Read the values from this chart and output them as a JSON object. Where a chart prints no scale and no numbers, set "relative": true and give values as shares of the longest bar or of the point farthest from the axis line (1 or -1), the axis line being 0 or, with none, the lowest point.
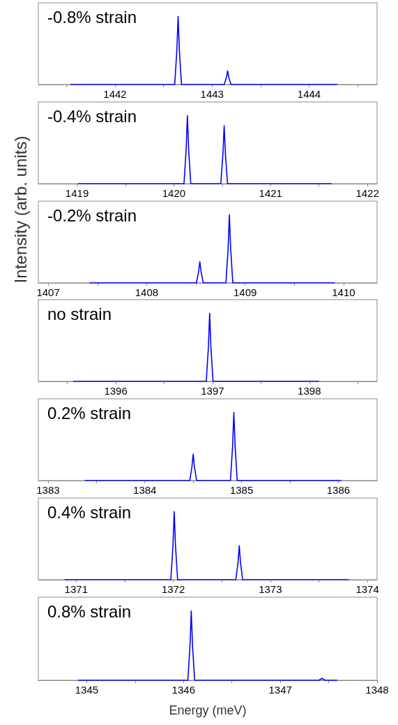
{
  "chart_data": [
    {
      "type": "line",
      "relative": true,
      "marker": "none",
      "annotations": [
        "-0.8% strain"
      ],
      "xlim": [
        1441.21,
        1444.7
      ],
      "xticks": [
        {
          "value": 1441.5,
          "label": null
        },
        1442,
        {
          "value": 1442.5,
          "label": null
        },
        1443,
        {
          "value": 1443.5,
          "label": null
        },
        1444,
        {
          "value": 1444.5,
          "label": null
        }
      ],
      "x": [
        1441.54,
        1442.615,
        1442.637,
        1442.65,
        1442.663,
        1442.685,
        1443.125,
        1443.147,
        1443.16,
        1443.173,
        1443.195,
        1444.29
      ],
      "series": [
        {
          "color": "#0000ff",
          "values": [
            0,
            0,
            0.5,
            1,
            0.5,
            0,
            0,
            0.1,
            0.2,
            0.1,
            0,
            0
          ]
        }
      ]
    },
    {
      "type": "line",
      "relative": true,
      "marker": "none",
      "annotations": [
        "-0.4% strain"
      ],
      "xlim": [
        1418.6,
        1422.1
      ],
      "xticks": [
        1419,
        {
          "value": 1419.5,
          "label": null
        },
        1420,
        {
          "value": 1420.5,
          "label": null
        },
        1421,
        {
          "value": 1421.5,
          "label": null
        },
        1422
      ],
      "x": [
        1419.01,
        1420.105,
        1420.127,
        1420.14,
        1420.153,
        1420.175,
        1420.485,
        1420.507,
        1420.52,
        1420.533,
        1420.555,
        1421.63
      ],
      "series": [
        {
          "color": "#0000ff",
          "values": [
            0,
            0,
            0.5,
            1,
            0.5,
            0,
            0,
            0.43,
            0.85,
            0.43,
            0,
            0
          ]
        }
      ]
    },
    {
      "type": "line",
      "relative": true,
      "marker": "none",
      "ylabel": "Intensity (arb. units)",
      "annotations": [
        "-0.2% strain"
      ],
      "xlim": [
        1406.9,
        1410.34
      ],
      "xticks": [
        1407,
        {
          "value": 1407.5,
          "label": null
        },
        1408,
        {
          "value": 1408.5,
          "label": null
        },
        1409,
        {
          "value": 1409.5,
          "label": null
        },
        1410
      ],
      "x": [
        1407.42,
        1408.505,
        1408.527,
        1408.54,
        1408.553,
        1408.575,
        1408.805,
        1408.827,
        1408.84,
        1408.853,
        1408.875,
        1409.91
      ],
      "series": [
        {
          "color": "#0000ff",
          "values": [
            0,
            0,
            0.16,
            0.31,
            0.16,
            0,
            0,
            0.5,
            1,
            0.5,
            0,
            0
          ]
        }
      ]
    },
    {
      "type": "line",
      "relative": true,
      "marker": "none",
      "annotations": [
        "no strain"
      ],
      "xlim": [
        1395.2,
        1398.7
      ],
      "xticks": [
        {
          "value": 1395.5,
          "label": null
        },
        1396,
        {
          "value": 1396.5,
          "label": null
        },
        1397,
        {
          "value": 1397.5,
          "label": null
        },
        1398,
        {
          "value": 1398.5,
          "label": null
        }
      ],
      "x": [
        1395.56,
        1396.935,
        1396.957,
        1396.97,
        1396.983,
        1397.005,
        1398.1
      ],
      "series": [
        {
          "color": "#0000ff",
          "values": [
            0,
            0,
            0.5,
            1,
            0.5,
            0,
            0
          ]
        }
      ]
    },
    {
      "type": "line",
      "relative": true,
      "marker": "none",
      "annotations": [
        "0.2% strain"
      ],
      "xlim": [
        1382.9,
        1386.4
      ],
      "xticks": [
        1383,
        {
          "value": 1383.5,
          "label": null
        },
        1384,
        {
          "value": 1384.5,
          "label": null
        },
        1385,
        {
          "value": 1385.5,
          "label": null
        },
        1386
      ],
      "x": [
        1383.38,
        1384.465,
        1384.487,
        1384.5,
        1384.513,
        1384.535,
        1384.885,
        1384.907,
        1384.92,
        1384.933,
        1384.955,
        1386.03
      ],
      "series": [
        {
          "color": "#0000ff",
          "values": [
            0,
            0,
            0.2,
            0.39,
            0.2,
            0,
            0,
            0.5,
            1,
            0.5,
            0,
            0
          ]
        }
      ]
    },
    {
      "type": "line",
      "relative": true,
      "marker": "none",
      "annotations": [
        "0.4% strain"
      ],
      "xlim": [
        1370.61,
        1374.1
      ],
      "xticks": [
        1371,
        {
          "value": 1371.5,
          "label": null
        },
        1372,
        {
          "value": 1372.5,
          "label": null
        },
        1373,
        {
          "value": 1373.5,
          "label": null
        },
        1374
      ],
      "x": [
        1370.88,
        1371.975,
        1371.997,
        1372.01,
        1372.023,
        1372.045,
        1372.645,
        1372.667,
        1372.68,
        1372.693,
        1372.715,
        1373.81
      ],
      "series": [
        {
          "color": "#0000ff",
          "values": [
            0,
            0,
            0.5,
            1,
            0.5,
            0,
            0,
            0.25,
            0.5,
            0.25,
            0,
            0
          ]
        }
      ]
    },
    {
      "type": "line",
      "relative": true,
      "marker": "none",
      "xlabel": "Energy (meV)",
      "annotations": [
        "0.8% strain"
      ],
      "xlim": [
        1344.5,
        1348
      ],
      "xticks": [
        1345,
        {
          "value": 1345.5,
          "label": null
        },
        1346,
        {
          "value": 1346.5,
          "label": null
        },
        1347,
        {
          "value": 1347.5,
          "label": null
        },
        1348
      ],
      "x": [
        1344.91,
        1346.045,
        1346.067,
        1346.08,
        1346.093,
        1346.115,
        1347.395,
        1347.417,
        1347.43,
        1347.443,
        1347.465,
        1347.59
      ],
      "series": [
        {
          "color": "#0000ff",
          "values": [
            0,
            0,
            0.5,
            1,
            0.5,
            0,
            0,
            0.015,
            0.03,
            0.015,
            0,
            0
          ]
        }
      ]
    }
  ]
}
